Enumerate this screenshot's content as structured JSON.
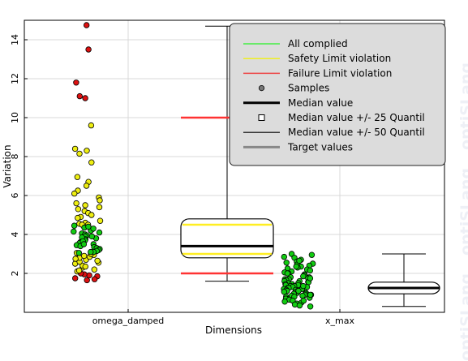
{
  "chart_data": {
    "type": "box",
    "categories": [
      "omega_damped",
      "x_max"
    ],
    "xlabel": "Dimensions",
    "ylabel": "Variation",
    "ylim": [
      0,
      15
    ],
    "yticks": [
      2,
      4,
      6,
      8,
      10,
      12,
      14
    ],
    "grid": true,
    "legend_placement": "top-right",
    "legend": [
      {
        "label": "All complied",
        "symbol": "line",
        "color": "#44ee44"
      },
      {
        "label": "Safety Limit violation",
        "symbol": "line",
        "color": "#eeee22"
      },
      {
        "label": "Failure Limit violation",
        "symbol": "line",
        "color": "#ee4444"
      },
      {
        "label": "Samples",
        "symbol": "dot",
        "color": "#777777"
      },
      {
        "label": "Median value",
        "symbol": "thick-line",
        "color": "#000000"
      },
      {
        "label": "Median value +/- 25 Quantil",
        "symbol": "square",
        "color": "#000000"
      },
      {
        "label": "Median value +/- 50 Quantil",
        "symbol": "thin-line",
        "color": "#000000"
      },
      {
        "label": "Target values",
        "symbol": "grey-line",
        "color": "#888888"
      }
    ],
    "boxes": [
      {
        "category": "omega_damped",
        "whisker_low": 1.6,
        "q1": 2.8,
        "median": 3.4,
        "q3": 4.8,
        "whisker_high": 14.7,
        "safety_limits": [
          3.0,
          4.5
        ],
        "failure_limits": [
          2.0,
          10.0
        ]
      },
      {
        "category": "x_max",
        "whisker_low": 0.3,
        "q1": 0.95,
        "median": 1.25,
        "q3": 1.55,
        "whisker_high": 3.0,
        "safety_limits": [],
        "failure_limits": []
      }
    ],
    "samples": [
      {
        "category": "omega_damped",
        "status": "failure",
        "values": [
          14.75,
          13.5,
          11.8,
          11.1,
          11.0,
          1.65,
          1.75,
          1.85,
          1.9,
          1.95,
          2.0,
          1.7
        ]
      },
      {
        "category": "omega_damped",
        "status": "safety",
        "values": [
          9.6,
          8.4,
          8.3,
          8.15,
          7.7,
          6.95,
          6.7,
          6.5,
          6.25,
          6.1,
          5.9,
          5.75,
          5.6,
          5.5,
          5.4,
          5.3,
          5.2,
          5.1,
          5.0,
          4.9,
          4.85,
          4.7,
          4.6,
          4.55,
          4.5,
          4.5,
          2.1,
          2.2,
          2.3,
          2.4,
          2.5,
          2.55,
          2.6,
          2.65,
          2.7,
          2.8,
          2.85,
          2.9,
          2.95,
          3.0,
          3.05,
          2.15,
          2.35,
          2.75
        ]
      },
      {
        "category": "omega_damped",
        "status": "complied",
        "values": [
          4.45,
          4.35,
          4.25,
          4.2,
          4.1,
          4.05,
          4.0,
          3.95,
          3.9,
          3.8,
          3.75,
          3.7,
          3.6,
          3.55,
          3.5,
          3.45,
          3.4,
          3.35,
          3.3,
          3.25,
          3.2,
          3.15,
          3.1,
          3.1,
          4.4,
          4.15,
          3.85,
          3.65,
          3.05,
          3.5,
          3.9,
          4.3
        ]
      },
      {
        "category": "x_max",
        "status": "complied",
        "values": [
          3.0,
          2.95,
          2.85,
          2.8,
          2.7,
          2.6,
          2.55,
          2.5,
          2.45,
          2.4,
          2.35,
          2.3,
          2.25,
          2.2,
          2.15,
          2.1,
          2.05,
          2.0,
          1.95,
          1.9,
          1.85,
          1.8,
          1.8,
          1.75,
          1.7,
          1.7,
          1.65,
          1.6,
          1.6,
          1.55,
          1.55,
          1.5,
          1.5,
          1.45,
          1.45,
          1.4,
          1.4,
          1.35,
          1.35,
          1.3,
          1.3,
          1.25,
          1.25,
          1.2,
          1.2,
          1.15,
          1.15,
          1.1,
          1.1,
          1.05,
          1.05,
          1.0,
          1.0,
          0.95,
          0.95,
          0.9,
          0.9,
          0.85,
          0.85,
          0.8,
          0.8,
          0.75,
          0.7,
          0.7,
          0.65,
          0.6,
          0.55,
          0.5,
          0.45,
          0.4,
          0.35,
          0.3,
          2.65,
          2.35,
          2.0,
          1.75,
          1.35,
          1.1,
          0.9,
          0.6
        ]
      }
    ]
  },
  "watermark": {
    "text": "optiSLang"
  },
  "colors": {
    "failure": "#dd1111",
    "safety": "#eeee11",
    "complied": "#11cc11",
    "limit_failure": "#ff3333",
    "limit_safety": "#ffee22"
  }
}
